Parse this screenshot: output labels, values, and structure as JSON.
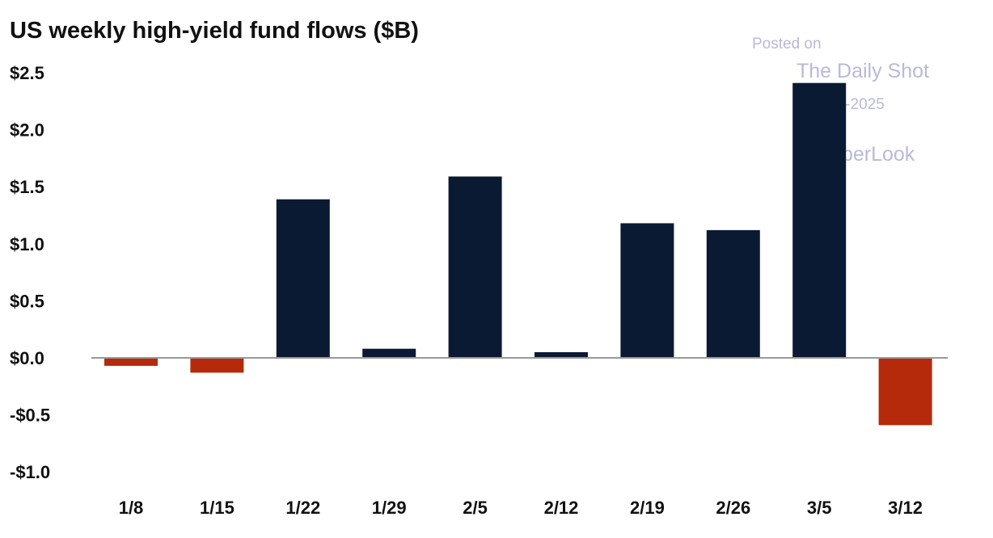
{
  "chart_data": {
    "type": "bar",
    "title": "US weekly high-yield fund flows ($B)",
    "xlabel": "",
    "ylabel": "",
    "categories": [
      "1/8",
      "1/15",
      "1/22",
      "1/29",
      "2/5",
      "2/12",
      "2/19",
      "2/26",
      "3/5",
      "3/12"
    ],
    "values": [
      -0.07,
      -0.13,
      1.39,
      0.08,
      1.59,
      0.05,
      1.18,
      1.12,
      2.41,
      -0.59
    ],
    "ylim": [
      -1.0,
      2.5
    ],
    "yticks": [
      2.5,
      2.0,
      1.5,
      1.0,
      0.5,
      0.0,
      -0.5,
      -1.0
    ],
    "ytick_labels": [
      "$2.5",
      "$2.0",
      "$1.5",
      "$1.0",
      "$0.5",
      "$0.0",
      "-$0.5",
      "-$1.0"
    ],
    "grid": false,
    "colors": {
      "positive": "#0b1a33",
      "negative": "#b52a0b"
    }
  },
  "watermark": {
    "line1": "Posted on",
    "line2": "The Daily Shot",
    "line3": "17-Mar-2025",
    "line4": "@SoberLook"
  }
}
